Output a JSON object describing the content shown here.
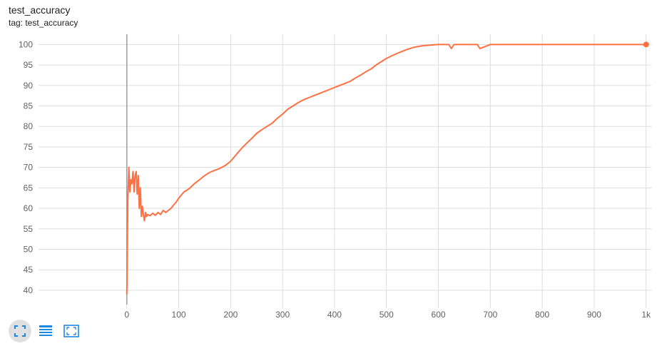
{
  "card": {
    "title": "test_accuracy",
    "tag": "tag: test_accuracy"
  },
  "colors": {
    "series": "#ff7043",
    "grid": "#dddddd",
    "zero_axis": "#9e9e9e",
    "toolbar_icon": "#1e88e5"
  },
  "toolbar": {
    "icons": [
      "fit-domain-icon",
      "toggle-log-scale-icon",
      "select-zoom-icon"
    ]
  },
  "chart_data": {
    "type": "line",
    "title": "test_accuracy",
    "xlabel": "",
    "ylabel": "",
    "xlim": [
      -170,
      1010
    ],
    "ylim": [
      36.5,
      102.5
    ],
    "grid": true,
    "x_ticks": [
      0,
      100,
      200,
      300,
      400,
      500,
      600,
      700,
      800,
      900,
      1000
    ],
    "x_tick_labels": [
      "0",
      "100",
      "200",
      "300",
      "400",
      "500",
      "600",
      "700",
      "800",
      "900",
      "1k"
    ],
    "y_ticks": [
      40,
      45,
      50,
      55,
      60,
      65,
      70,
      75,
      80,
      85,
      90,
      95,
      100
    ],
    "y_tick_labels": [
      "40",
      "45",
      "50",
      "55",
      "60",
      "65",
      "70",
      "75",
      "80",
      "85",
      "90",
      "95",
      "100"
    ],
    "series": [
      {
        "name": "",
        "x": [
          0,
          2,
          4,
          6,
          8,
          10,
          12,
          14,
          16,
          18,
          20,
          22,
          24,
          26,
          28,
          30,
          32,
          34,
          36,
          38,
          40,
          45,
          50,
          55,
          60,
          65,
          70,
          75,
          80,
          85,
          90,
          95,
          100,
          110,
          120,
          130,
          140,
          150,
          160,
          170,
          180,
          190,
          200,
          210,
          220,
          230,
          240,
          250,
          260,
          270,
          280,
          290,
          300,
          310,
          320,
          330,
          340,
          350,
          360,
          370,
          380,
          390,
          400,
          410,
          420,
          430,
          440,
          450,
          460,
          470,
          480,
          490,
          500,
          510,
          520,
          530,
          540,
          550,
          560,
          570,
          580,
          590,
          600,
          610,
          620,
          625,
          630,
          640,
          660,
          675,
          680,
          700,
          750,
          800,
          850,
          900,
          950,
          1000
        ],
        "y": [
          39.0,
          62.0,
          70.0,
          64.0,
          67.0,
          66.0,
          69.0,
          64.0,
          68.0,
          69.0,
          63.5,
          68.0,
          60.0,
          65.0,
          58.0,
          60.5,
          58.5,
          57.0,
          59.0,
          58.0,
          58.5,
          58.2,
          58.8,
          58.3,
          59.0,
          58.5,
          59.5,
          59.0,
          59.5,
          60.0,
          60.8,
          61.5,
          62.5,
          64.0,
          64.8,
          66.0,
          67.0,
          68.0,
          68.8,
          69.3,
          69.8,
          70.5,
          71.5,
          73.0,
          74.5,
          75.8,
          77.0,
          78.3,
          79.2,
          80.0,
          80.8,
          82.0,
          83.0,
          84.2,
          85.0,
          85.8,
          86.5,
          87.0,
          87.5,
          88.0,
          88.5,
          89.0,
          89.5,
          90.0,
          90.5,
          91.0,
          91.8,
          92.5,
          93.3,
          94.0,
          95.0,
          95.8,
          96.6,
          97.2,
          97.8,
          98.3,
          98.8,
          99.2,
          99.5,
          99.7,
          99.8,
          99.9,
          100.0,
          100.0,
          100.0,
          99.0,
          100.0,
          100.0,
          100.0,
          100.0,
          99.0,
          100.0,
          100.0,
          100.0,
          100.0,
          100.0,
          100.0,
          100.0
        ]
      }
    ]
  }
}
